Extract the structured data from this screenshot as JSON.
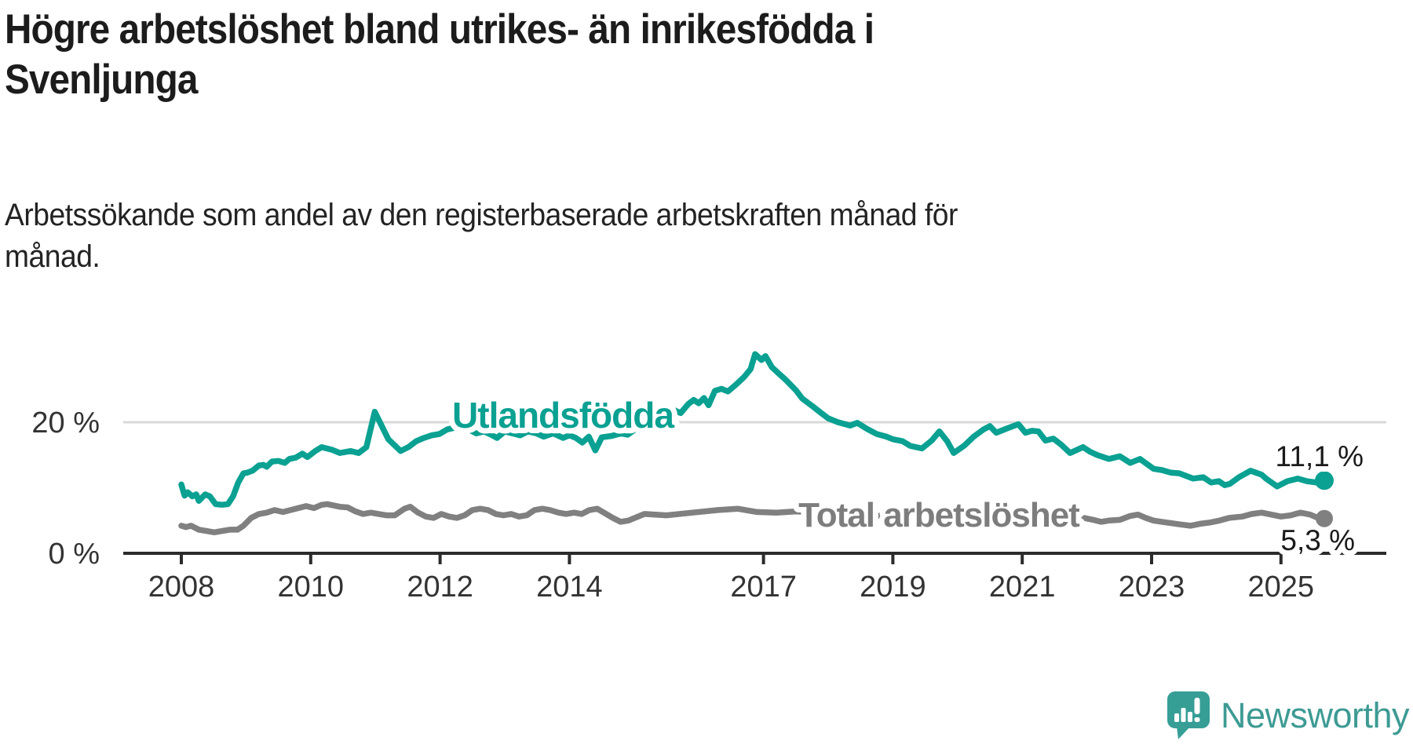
{
  "header": {
    "title_line1": "Högre arbetslöshet bland utrikes- än inrikesfödda i",
    "title_line2": "Svenljunga",
    "subtitle_line1": "Arbetssökande som andel av den registerbaserade arbetskraften månad för",
    "subtitle_line2": "månad."
  },
  "footer": {
    "brand": "Newsworthy",
    "brand_color": "#3d9b94",
    "logo_icon": "newsworthy-speech-bubble-bar-chart"
  },
  "chart_data": {
    "type": "line",
    "title": "Högre arbetslöshet bland utrikes- än inrikesfödda i Svenljunga",
    "subtitle": "Arbetssökande som andel av den registerbaserade arbetskraften månad för månad.",
    "xlabel": "",
    "ylabel": "",
    "xlim": [
      2008,
      2025.9
    ],
    "ylim": [
      0,
      32
    ],
    "grid": "single horizontal gridline at 20 %",
    "legend_position": "inline labels on lines",
    "x_tick_years": [
      2008,
      2010,
      2012,
      2014,
      2017,
      2019,
      2021,
      2023,
      2025
    ],
    "x_tick_labels": [
      "2008",
      "2010",
      "2012",
      "2014",
      "2017",
      "2019",
      "2021",
      "2023",
      "2025"
    ],
    "y_tick_labels": {
      "top": "20 %",
      "bottom": "0 %"
    },
    "colors": {
      "utlandsfodda": "#0aa192",
      "total": "#808080",
      "gridline": "#d9d9d9",
      "axis": "#2b2b2b",
      "value_label": "#1a1a1a"
    },
    "series": [
      {
        "name": "Utlandsfödda",
        "color": "#0aa192",
        "end_label": "11,1 %",
        "end_value": 11.1,
        "points": [
          [
            2008.0,
            10.5
          ],
          [
            2008.05,
            8.8
          ],
          [
            2008.1,
            9.3
          ],
          [
            2008.17,
            8.7
          ],
          [
            2008.23,
            9.0
          ],
          [
            2008.27,
            8.0
          ],
          [
            2008.37,
            9.0
          ],
          [
            2008.44,
            8.7
          ],
          [
            2008.53,
            7.5
          ],
          [
            2008.63,
            7.4
          ],
          [
            2008.72,
            7.5
          ],
          [
            2008.8,
            8.7
          ],
          [
            2008.88,
            10.8
          ],
          [
            2008.96,
            12.2
          ],
          [
            2009.02,
            12.3
          ],
          [
            2009.1,
            12.6
          ],
          [
            2009.2,
            13.4
          ],
          [
            2009.27,
            13.5
          ],
          [
            2009.32,
            13.2
          ],
          [
            2009.4,
            14.0
          ],
          [
            2009.5,
            14.1
          ],
          [
            2009.6,
            13.8
          ],
          [
            2009.67,
            14.4
          ],
          [
            2009.77,
            14.6
          ],
          [
            2009.87,
            15.2
          ],
          [
            2009.95,
            14.7
          ],
          [
            2010.07,
            15.6
          ],
          [
            2010.17,
            16.2
          ],
          [
            2010.33,
            15.8
          ],
          [
            2010.45,
            15.3
          ],
          [
            2010.62,
            15.6
          ],
          [
            2010.74,
            15.3
          ],
          [
            2010.86,
            16.2
          ],
          [
            2010.99,
            21.6
          ],
          [
            2011.14,
            18.6
          ],
          [
            2011.2,
            17.4
          ],
          [
            2011.39,
            15.6
          ],
          [
            2011.51,
            16.2
          ],
          [
            2011.63,
            17.1
          ],
          [
            2011.75,
            17.6
          ],
          [
            2011.87,
            18.0
          ],
          [
            2011.99,
            18.2
          ],
          [
            2012.11,
            18.9
          ],
          [
            2012.24,
            19.2
          ],
          [
            2012.32,
            19.4
          ],
          [
            2012.44,
            18.9
          ],
          [
            2012.56,
            18.3
          ],
          [
            2012.68,
            18.6
          ],
          [
            2012.81,
            18.0
          ],
          [
            2012.88,
            17.6
          ],
          [
            2013.0,
            18.6
          ],
          [
            2013.12,
            18.3
          ],
          [
            2013.24,
            18.0
          ],
          [
            2013.36,
            18.6
          ],
          [
            2013.49,
            18.3
          ],
          [
            2013.6,
            17.8
          ],
          [
            2013.75,
            18.3
          ],
          [
            2013.9,
            17.6
          ],
          [
            2014.0,
            18.0
          ],
          [
            2014.1,
            17.6
          ],
          [
            2014.2,
            16.9
          ],
          [
            2014.3,
            17.8
          ],
          [
            2014.4,
            15.7
          ],
          [
            2014.5,
            17.7
          ],
          [
            2014.65,
            17.9
          ],
          [
            2014.8,
            18.3
          ],
          [
            2014.9,
            18.1
          ],
          [
            2015.0,
            18.8
          ],
          [
            2015.15,
            19.5
          ],
          [
            2015.3,
            20.1
          ],
          [
            2015.45,
            20.6
          ],
          [
            2015.63,
            21.8
          ],
          [
            2015.72,
            21.4
          ],
          [
            2015.84,
            22.8
          ],
          [
            2015.92,
            23.4
          ],
          [
            2016.0,
            22.9
          ],
          [
            2016.08,
            23.7
          ],
          [
            2016.15,
            22.6
          ],
          [
            2016.25,
            24.8
          ],
          [
            2016.35,
            25.1
          ],
          [
            2016.45,
            24.7
          ],
          [
            2016.57,
            25.7
          ],
          [
            2016.7,
            26.9
          ],
          [
            2016.8,
            28.1
          ],
          [
            2016.87,
            30.4
          ],
          [
            2016.97,
            29.5
          ],
          [
            2017.03,
            30.1
          ],
          [
            2017.13,
            28.4
          ],
          [
            2017.25,
            27.3
          ],
          [
            2017.33,
            26.6
          ],
          [
            2017.5,
            24.9
          ],
          [
            2017.6,
            23.6
          ],
          [
            2017.75,
            22.5
          ],
          [
            2017.88,
            21.5
          ],
          [
            2018.0,
            20.6
          ],
          [
            2018.15,
            20.0
          ],
          [
            2018.34,
            19.5
          ],
          [
            2018.45,
            19.9
          ],
          [
            2018.6,
            19.0
          ],
          [
            2018.75,
            18.2
          ],
          [
            2018.9,
            17.8
          ],
          [
            2019.0,
            17.4
          ],
          [
            2019.15,
            17.1
          ],
          [
            2019.27,
            16.4
          ],
          [
            2019.45,
            16.0
          ],
          [
            2019.6,
            17.2
          ],
          [
            2019.72,
            18.6
          ],
          [
            2019.84,
            17.1
          ],
          [
            2019.94,
            15.3
          ],
          [
            2020.1,
            16.4
          ],
          [
            2020.25,
            17.8
          ],
          [
            2020.4,
            18.9
          ],
          [
            2020.5,
            19.4
          ],
          [
            2020.6,
            18.4
          ],
          [
            2020.75,
            19.0
          ],
          [
            2020.94,
            19.7
          ],
          [
            2021.05,
            18.4
          ],
          [
            2021.15,
            18.7
          ],
          [
            2021.25,
            18.6
          ],
          [
            2021.36,
            17.2
          ],
          [
            2021.48,
            17.5
          ],
          [
            2021.6,
            16.6
          ],
          [
            2021.74,
            15.3
          ],
          [
            2021.94,
            16.2
          ],
          [
            2022.05,
            15.5
          ],
          [
            2022.16,
            15.0
          ],
          [
            2022.34,
            14.4
          ],
          [
            2022.51,
            14.8
          ],
          [
            2022.67,
            13.8
          ],
          [
            2022.82,
            14.4
          ],
          [
            2023.03,
            12.9
          ],
          [
            2023.16,
            12.7
          ],
          [
            2023.3,
            12.3
          ],
          [
            2023.43,
            12.2
          ],
          [
            2023.64,
            11.4
          ],
          [
            2023.8,
            11.6
          ],
          [
            2023.92,
            10.8
          ],
          [
            2024.04,
            11.0
          ],
          [
            2024.13,
            10.4
          ],
          [
            2024.21,
            10.6
          ],
          [
            2024.35,
            11.6
          ],
          [
            2024.53,
            12.6
          ],
          [
            2024.7,
            12.0
          ],
          [
            2024.77,
            11.4
          ],
          [
            2024.94,
            10.2
          ],
          [
            2025.1,
            11.0
          ],
          [
            2025.26,
            11.4
          ],
          [
            2025.4,
            11.0
          ],
          [
            2025.55,
            10.8
          ],
          [
            2025.67,
            11.1
          ]
        ]
      },
      {
        "name": "Total arbetslöshet",
        "color": "#808080",
        "end_label": "5,3 %",
        "end_value": 5.3,
        "points": [
          [
            2008.0,
            4.2
          ],
          [
            2008.07,
            4.0
          ],
          [
            2008.15,
            4.2
          ],
          [
            2008.27,
            3.6
          ],
          [
            2008.39,
            3.4
          ],
          [
            2008.51,
            3.2
          ],
          [
            2008.63,
            3.4
          ],
          [
            2008.75,
            3.6
          ],
          [
            2008.87,
            3.6
          ],
          [
            2008.96,
            4.2
          ],
          [
            2009.08,
            5.4
          ],
          [
            2009.2,
            6.0
          ],
          [
            2009.32,
            6.2
          ],
          [
            2009.44,
            6.6
          ],
          [
            2009.57,
            6.3
          ],
          [
            2009.69,
            6.6
          ],
          [
            2009.81,
            6.9
          ],
          [
            2009.93,
            7.2
          ],
          [
            2010.05,
            6.9
          ],
          [
            2010.17,
            7.4
          ],
          [
            2010.26,
            7.5
          ],
          [
            2010.45,
            7.1
          ],
          [
            2010.57,
            7.0
          ],
          [
            2010.69,
            6.4
          ],
          [
            2010.81,
            6.0
          ],
          [
            2010.93,
            6.2
          ],
          [
            2011.05,
            6.0
          ],
          [
            2011.17,
            5.8
          ],
          [
            2011.3,
            5.8
          ],
          [
            2011.45,
            6.8
          ],
          [
            2011.54,
            7.1
          ],
          [
            2011.66,
            6.2
          ],
          [
            2011.78,
            5.6
          ],
          [
            2011.9,
            5.4
          ],
          [
            2012.02,
            6.0
          ],
          [
            2012.14,
            5.6
          ],
          [
            2012.26,
            5.4
          ],
          [
            2012.38,
            5.8
          ],
          [
            2012.5,
            6.6
          ],
          [
            2012.62,
            6.8
          ],
          [
            2012.74,
            6.6
          ],
          [
            2012.86,
            6.0
          ],
          [
            2012.98,
            5.8
          ],
          [
            2013.1,
            6.0
          ],
          [
            2013.22,
            5.6
          ],
          [
            2013.34,
            5.8
          ],
          [
            2013.46,
            6.6
          ],
          [
            2013.58,
            6.8
          ],
          [
            2013.7,
            6.6
          ],
          [
            2013.83,
            6.2
          ],
          [
            2013.95,
            6.0
          ],
          [
            2014.07,
            6.2
          ],
          [
            2014.19,
            6.0
          ],
          [
            2014.31,
            6.6
          ],
          [
            2014.43,
            6.8
          ],
          [
            2014.67,
            5.4
          ],
          [
            2014.79,
            4.8
          ],
          [
            2014.91,
            5.0
          ],
          [
            2015.16,
            6.0
          ],
          [
            2015.5,
            5.8
          ],
          [
            2015.9,
            6.2
          ],
          [
            2016.3,
            6.6
          ],
          [
            2016.6,
            6.8
          ],
          [
            2016.9,
            6.3
          ],
          [
            2017.2,
            6.2
          ],
          [
            2017.5,
            6.4
          ],
          [
            2017.8,
            6.2
          ],
          [
            2018.1,
            6.1
          ],
          [
            2018.4,
            5.9
          ],
          [
            2018.7,
            5.7
          ],
          [
            2019.0,
            5.8
          ],
          [
            2019.3,
            5.6
          ],
          [
            2019.6,
            5.5
          ],
          [
            2019.9,
            5.4
          ],
          [
            2020.1,
            5.8
          ],
          [
            2020.3,
            6.4
          ],
          [
            2020.5,
            6.9
          ],
          [
            2020.7,
            6.7
          ],
          [
            2020.9,
            6.8
          ],
          [
            2021.1,
            6.6
          ],
          [
            2021.3,
            6.4
          ],
          [
            2021.5,
            6.1
          ],
          [
            2021.7,
            5.8
          ],
          [
            2021.9,
            5.5
          ],
          [
            2022.1,
            5.1
          ],
          [
            2022.22,
            4.8
          ],
          [
            2022.34,
            5.0
          ],
          [
            2022.51,
            5.1
          ],
          [
            2022.67,
            5.7
          ],
          [
            2022.79,
            5.9
          ],
          [
            2022.91,
            5.4
          ],
          [
            2023.03,
            5.0
          ],
          [
            2023.16,
            4.8
          ],
          [
            2023.3,
            4.6
          ],
          [
            2023.45,
            4.4
          ],
          [
            2023.6,
            4.2
          ],
          [
            2023.75,
            4.5
          ],
          [
            2023.9,
            4.7
          ],
          [
            2024.05,
            5.0
          ],
          [
            2024.2,
            5.4
          ],
          [
            2024.4,
            5.6
          ],
          [
            2024.55,
            6.0
          ],
          [
            2024.7,
            6.2
          ],
          [
            2024.85,
            5.9
          ],
          [
            2025.0,
            5.6
          ],
          [
            2025.15,
            5.8
          ],
          [
            2025.3,
            6.2
          ],
          [
            2025.45,
            5.9
          ],
          [
            2025.55,
            5.5
          ],
          [
            2025.67,
            5.3
          ]
        ]
      }
    ]
  }
}
